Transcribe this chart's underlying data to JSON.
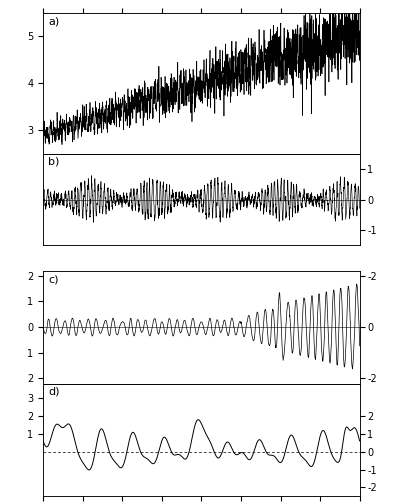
{
  "title": "",
  "xlim": [
    4.0,
    0.0
  ],
  "xticks": [
    4.0,
    3.5,
    3.0,
    2.5,
    2.0,
    1.5,
    1.0,
    0.5,
    0.0
  ],
  "panel_a": {
    "label": "a)",
    "ylim": [
      2.5,
      5.5
    ],
    "yticks_left": [
      3,
      4,
      5
    ]
  },
  "panel_b": {
    "label": "b)",
    "ylim": [
      -1.5,
      1.5
    ],
    "yticks_right": [
      1,
      0,
      -1
    ]
  },
  "panel_c": {
    "label": "c)",
    "ylim": [
      -2.2,
      2.2
    ],
    "yticks_left": [
      2,
      1,
      0,
      1,
      2
    ],
    "yticks_right": [
      -2,
      0,
      2
    ]
  },
  "panel_d": {
    "label": "d)",
    "ylim": [
      -2.5,
      3.8
    ],
    "yticks_left": [
      3,
      2,
      1
    ],
    "yticks_right": [
      2,
      1,
      0,
      -1,
      -2
    ]
  },
  "line_color": "#000000",
  "bg_color": "#ffffff",
  "dpi": 100,
  "figsize": [
    4.11,
    5.04
  ]
}
